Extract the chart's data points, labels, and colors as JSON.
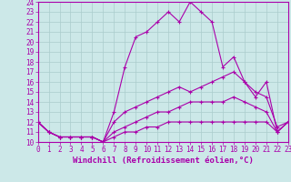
{
  "xlabel": "Windchill (Refroidissement éolien,°C)",
  "background_color": "#cce8e8",
  "line_color": "#aa00aa",
  "grid_color": "#aacccc",
  "xmin": 0,
  "xmax": 23,
  "ymin": 10,
  "ymax": 24,
  "lines": [
    [
      12,
      11,
      10.5,
      10.5,
      10.5,
      10.5,
      10,
      13,
      17.5,
      20.5,
      21,
      22,
      23,
      22,
      24,
      23,
      22,
      17.5,
      18.5,
      16,
      14.5,
      16,
      11,
      12
    ],
    [
      12,
      11,
      10.5,
      10.5,
      10.5,
      10.5,
      10,
      12,
      13,
      13.5,
      14,
      14.5,
      15,
      15.5,
      15,
      15.5,
      16,
      16.5,
      17,
      16,
      15,
      14.5,
      11.5,
      12
    ],
    [
      12,
      11,
      10.5,
      10.5,
      10.5,
      10.5,
      10,
      11,
      11.5,
      12,
      12.5,
      13,
      13,
      13.5,
      14,
      14,
      14,
      14,
      14.5,
      14,
      13.5,
      13,
      11,
      12
    ],
    [
      12,
      11,
      10.5,
      10.5,
      10.5,
      10.5,
      10,
      10.5,
      11,
      11,
      11.5,
      11.5,
      12,
      12,
      12,
      12,
      12,
      12,
      12,
      12,
      12,
      12,
      11,
      12
    ]
  ],
  "yticks": [
    10,
    11,
    12,
    13,
    14,
    15,
    16,
    17,
    18,
    19,
    20,
    21,
    22,
    23,
    24
  ],
  "xticks": [
    0,
    1,
    2,
    3,
    4,
    5,
    6,
    7,
    8,
    9,
    10,
    11,
    12,
    13,
    14,
    15,
    16,
    17,
    18,
    19,
    20,
    21,
    22,
    23
  ],
  "tick_fontsize": 5.5,
  "xlabel_fontsize": 6.5,
  "linewidth": 0.8,
  "markersize": 3.5
}
